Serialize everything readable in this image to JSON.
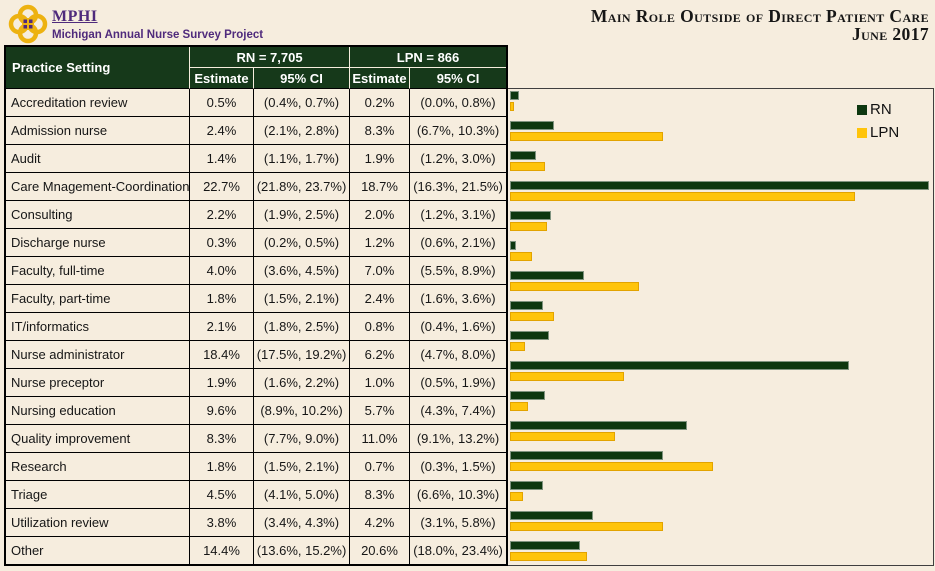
{
  "header": {
    "logo_acronym": "MPHI",
    "logo_subtitle": "Michigan Annual Nurse Survey Project",
    "title_line1": "Main Role Outside of Direct Patient Care",
    "title_line2": "June 2017"
  },
  "colors": {
    "background": "#F6EDDE",
    "header_green": "#16391A",
    "rn_bar": "#0D370F",
    "lpn_bar": "#FFC40A",
    "purple": "#4F2A7C",
    "logo_gold": "#EDB211"
  },
  "table": {
    "practice_setting_header": "Practice Setting",
    "rn_group_header": "RN = 7,705",
    "lpn_group_header": "LPN = 866",
    "estimate_header": "Estimate",
    "ci_header": "95% CI",
    "rows": [
      {
        "setting": "Accreditation review",
        "rn_est": "0.5%",
        "rn_ci": "(0.4%, 0.7%)",
        "lpn_est": "0.2%",
        "lpn_ci": "(0.0%, 0.8%)"
      },
      {
        "setting": "Admission nurse",
        "rn_est": "2.4%",
        "rn_ci": "(2.1%, 2.8%)",
        "lpn_est": "8.3%",
        "lpn_ci": "(6.7%, 10.3%)"
      },
      {
        "setting": "Audit",
        "rn_est": "1.4%",
        "rn_ci": "(1.1%, 1.7%)",
        "lpn_est": "1.9%",
        "lpn_ci": "(1.2%, 3.0%)"
      },
      {
        "setting": "Care Mnagement-Coordination",
        "rn_est": "22.7%",
        "rn_ci": "(21.8%, 23.7%)",
        "lpn_est": "18.7%",
        "lpn_ci": "(16.3%, 21.5%)"
      },
      {
        "setting": "Consulting",
        "rn_est": "2.2%",
        "rn_ci": "(1.9%, 2.5%)",
        "lpn_est": "2.0%",
        "lpn_ci": "(1.2%, 3.1%)"
      },
      {
        "setting": "Discharge nurse",
        "rn_est": "0.3%",
        "rn_ci": "(0.2%, 0.5%)",
        "lpn_est": "1.2%",
        "lpn_ci": "(0.6%, 2.1%)"
      },
      {
        "setting": "Faculty, full-time",
        "rn_est": "4.0%",
        "rn_ci": "(3.6%, 4.5%)",
        "lpn_est": "7.0%",
        "lpn_ci": "(5.5%, 8.9%)"
      },
      {
        "setting": "Faculty, part-time",
        "rn_est": "1.8%",
        "rn_ci": "(1.5%, 2.1%)",
        "lpn_est": "2.4%",
        "lpn_ci": "(1.6%, 3.6%)"
      },
      {
        "setting": "IT/informatics",
        "rn_est": "2.1%",
        "rn_ci": "(1.8%, 2.5%)",
        "lpn_est": "0.8%",
        "lpn_ci": "(0.4%, 1.6%)"
      },
      {
        "setting": "Nurse administrator",
        "rn_est": "18.4%",
        "rn_ci": "(17.5%, 19.2%)",
        "lpn_est": "6.2%",
        "lpn_ci": "(4.7%, 8.0%)"
      },
      {
        "setting": "Nurse preceptor",
        "rn_est": "1.9%",
        "rn_ci": "(1.6%, 2.2%)",
        "lpn_est": "1.0%",
        "lpn_ci": "(0.5%, 1.9%)"
      },
      {
        "setting": "Nursing education",
        "rn_est": "9.6%",
        "rn_ci": "(8.9%, 10.2%)",
        "lpn_est": "5.7%",
        "lpn_ci": "(4.3%, 7.4%)"
      },
      {
        "setting": "Quality improvement",
        "rn_est": "8.3%",
        "rn_ci": "(7.7%, 9.0%)",
        "lpn_est": "11.0%",
        "lpn_ci": "(9.1%, 13.2%)"
      },
      {
        "setting": "Research",
        "rn_est": "1.8%",
        "rn_ci": "(1.5%, 2.1%)",
        "lpn_est": "0.7%",
        "lpn_ci": "(0.3%, 1.5%)"
      },
      {
        "setting": "Triage",
        "rn_est": "4.5%",
        "rn_ci": "(4.1%, 5.0%)",
        "lpn_est": "8.3%",
        "lpn_ci": "(6.6%, 10.3%)"
      },
      {
        "setting": "Utilization review",
        "rn_est": "3.8%",
        "rn_ci": "(3.4%, 4.3%)",
        "lpn_est": "4.2%",
        "lpn_ci": "(3.1%, 5.8%)"
      },
      {
        "setting": "Other",
        "rn_est": "14.4%",
        "rn_ci": "(13.6%, 15.2%)",
        "lpn_est": "20.6%",
        "lpn_ci": "(18.0%, 23.4%)"
      }
    ]
  },
  "legend": {
    "rn_label": "RN",
    "lpn_label": "LPN"
  },
  "chart_data": {
    "type": "bar",
    "orientation": "horizontal",
    "title": "Main Role Outside of Direct Patient Care",
    "subtitle": "June 2017",
    "categories": [
      "Accreditation review",
      "Admission nurse",
      "Audit",
      "Care Mnagement-Coordination",
      "Consulting",
      "Discharge nurse",
      "Faculty, full-time",
      "Faculty, part-time",
      "IT/informatics",
      "Nurse administrator",
      "Nurse preceptor",
      "Nursing education",
      "Quality improvement",
      "Research",
      "Triage",
      "Utilization review",
      "Other"
    ],
    "series": [
      {
        "name": "RN",
        "color": "#0D370F",
        "values": [
          0.5,
          2.4,
          1.4,
          22.7,
          2.2,
          0.3,
          4.0,
          1.8,
          2.1,
          18.4,
          1.9,
          9.6,
          8.3,
          1.8,
          4.5,
          3.8,
          14.4
        ]
      },
      {
        "name": "LPN",
        "color": "#FFC40A",
        "values": [
          0.2,
          8.3,
          1.9,
          18.7,
          2.0,
          1.2,
          7.0,
          2.4,
          0.8,
          6.2,
          1.0,
          5.7,
          11.0,
          0.7,
          8.3,
          4.2,
          20.6
        ]
      }
    ],
    "x_unit": "percent",
    "xlim": [
      0,
      23
    ],
    "grid": false,
    "axis_labels_visible": false,
    "legend_position": "top-right"
  }
}
